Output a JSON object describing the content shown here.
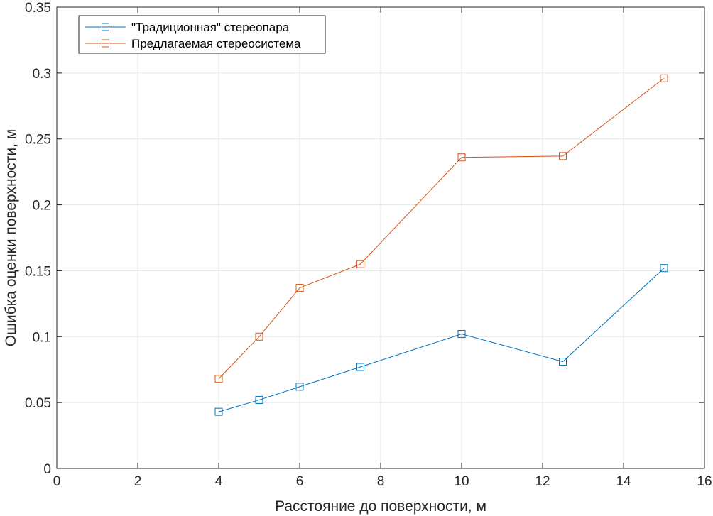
{
  "chart_data": {
    "type": "line",
    "xlabel": "Расстояние до поверхности, м",
    "ylabel": "Ошибка оценки  поверхности, м",
    "xlim": [
      0,
      16
    ],
    "ylim": [
      0,
      0.35
    ],
    "xticks": [
      "0",
      "2",
      "4",
      "6",
      "8",
      "10",
      "12",
      "14",
      "16"
    ],
    "yticks": [
      "0",
      "0.05",
      "0.1",
      "0.15",
      "0.2",
      "0.25",
      "0.3",
      "0.35"
    ],
    "grid": true,
    "legend_position": "top-left",
    "marker": "square",
    "series": [
      {
        "name": "\"Традиционная\" стереопара",
        "color": "#0072BD",
        "x": [
          4,
          5,
          6,
          7.5,
          10,
          12.5,
          15
        ],
        "y": [
          0.043,
          0.052,
          0.062,
          0.077,
          0.102,
          0.081,
          0.152
        ]
      },
      {
        "name": "Предлагаемая стереосистема",
        "color": "#D95319",
        "x": [
          4,
          5,
          6,
          7.5,
          10,
          12.5,
          15
        ],
        "y": [
          0.068,
          0.1,
          0.137,
          0.155,
          0.236,
          0.237,
          0.296
        ]
      }
    ]
  }
}
